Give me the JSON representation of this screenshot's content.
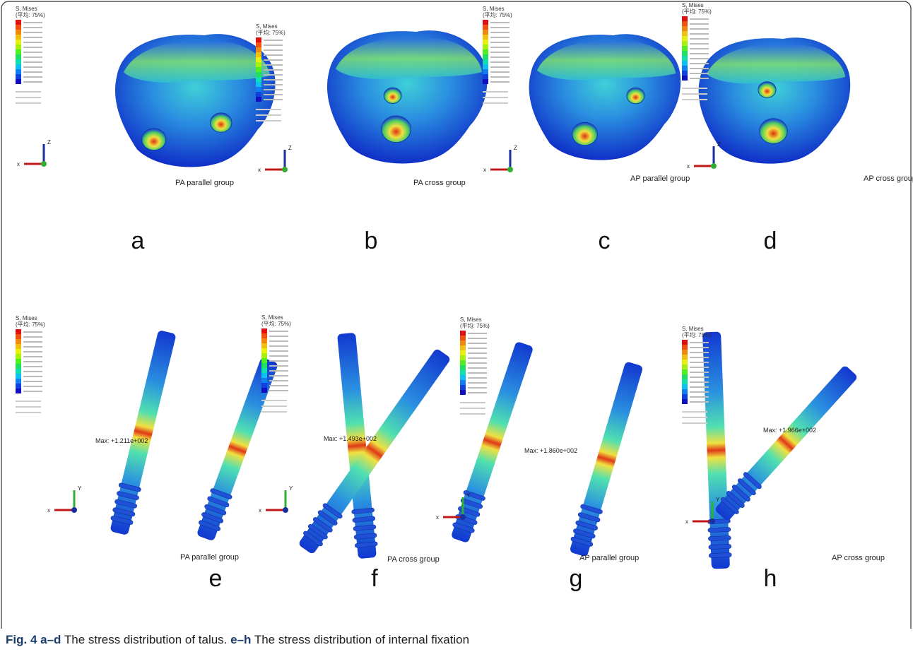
{
  "figure": {
    "panels": [
      {
        "letter": "a",
        "group": "PA parallel group",
        "legend_title": "S, Mises",
        "legend_average": "(平均: 75%)"
      },
      {
        "letter": "b",
        "group": "PA cross group",
        "legend_title": "S, Mises",
        "legend_average": "(平均: 75%)"
      },
      {
        "letter": "c",
        "group": "AP parallel group",
        "legend_title": "S, Mises",
        "legend_average": "(平均: 75%)"
      },
      {
        "letter": "d",
        "group": "AP cross group",
        "legend_title": "S, Mises",
        "legend_average": "(平均: 75%)"
      },
      {
        "letter": "e",
        "group": "PA parallel group",
        "legend_title": "S, Mises",
        "legend_average": "(平均: 75%)",
        "max_label": "Max: +1.211e+002"
      },
      {
        "letter": "f",
        "group": "PA cross group",
        "legend_title": "S, Mises",
        "legend_average": "(平均: 75%)",
        "max_label": "Max: +1.493e+002"
      },
      {
        "letter": "g",
        "group": "AP parallel group",
        "legend_title": "S, Mises",
        "legend_average": "(平均: 75%)",
        "max_label": "Max: +1.860e+002"
      },
      {
        "letter": "h",
        "group": "AP cross group",
        "legend_title": "S, Mises",
        "legend_average": "(平均: 75%)",
        "max_label": "Max: +1.966e+002"
      }
    ],
    "triad_labels": {
      "x": "x",
      "y": "Y",
      "z": "Z"
    },
    "caption": {
      "label": "Fig. 4",
      "part1_letters": "a–d",
      "part1_text": " The stress distribution of talus. ",
      "part2_letters": "e–h",
      "part2_text": " The stress distribution of internal fixation"
    }
  }
}
